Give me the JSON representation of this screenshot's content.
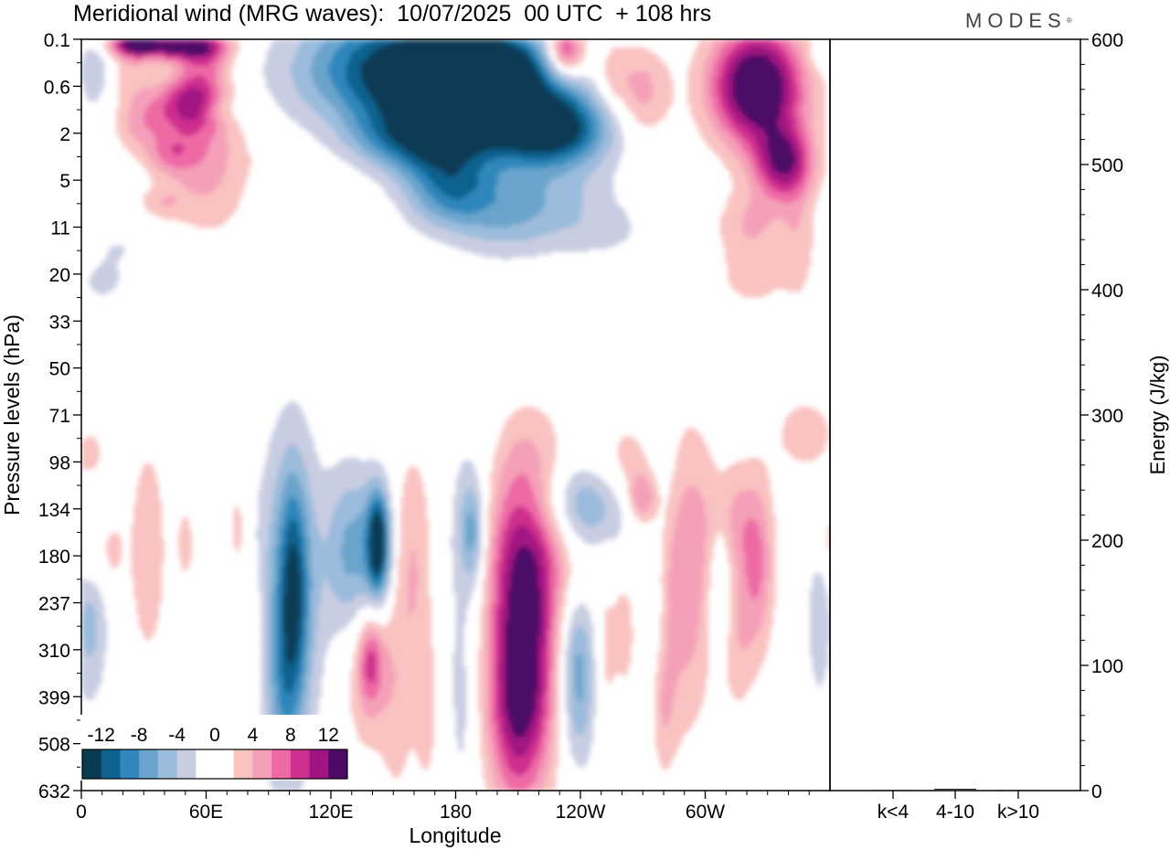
{
  "header": {
    "title": "Meridional wind (MRG waves):  10/07/2025  00 UTC  + 108 hrs",
    "brand": "MODES",
    "brand_mark": "®"
  },
  "colors": {
    "neg_levels": [
      "#0b3a55",
      "#0f628f",
      "#2f87bc",
      "#6aa4cc",
      "#9bbcdc",
      "#c9cde2"
    ],
    "pos_levels": [
      "#f9c3c1",
      "#f5a0b9",
      "#ee6aa5",
      "#cf2f8f",
      "#a11482",
      "#4b0a66"
    ],
    "zero": "#ffffff"
  },
  "chart_data": [
    {
      "type": "heatmap",
      "title": "Meridional wind (MRG waves):  10/07/2025  00 UTC  + 108 hrs",
      "xlabel": "Longitude",
      "ylabel": "Pressure levels (hPa)",
      "x_ticks": [
        "0",
        "60E",
        "120E",
        "180",
        "120W",
        "60W"
      ],
      "x_tick_degrees": [
        0,
        60,
        120,
        180,
        240,
        300
      ],
      "xlim": [
        0,
        360
      ],
      "y_ticks": [
        "0.1",
        "0.6",
        "2",
        "5",
        "11",
        "20",
        "33",
        "50",
        "71",
        "98",
        "134",
        "180",
        "237",
        "310",
        "399",
        "508",
        "632"
      ],
      "y_reversed": true,
      "colorbar": {
        "labels": [
          "-12",
          "-8",
          "-4",
          "0",
          "4",
          "8",
          "12"
        ],
        "levels": [
          -14,
          -12,
          -10,
          -8,
          -6,
          -4,
          -2,
          2,
          4,
          6,
          8,
          10,
          12,
          14
        ]
      },
      "blobs": [
        {
          "x": 42,
          "level": 0.3,
          "w": 16,
          "h": 0.4,
          "v": 12
        },
        {
          "x": 25,
          "level": 0.2,
          "w": 8,
          "h": 0.3,
          "v": 7
        },
        {
          "x": 60,
          "level": 0.5,
          "w": 9,
          "h": 0.8,
          "v": 6
        },
        {
          "x": 6,
          "level": 1.3,
          "w": 5,
          "h": 1.2,
          "v": -4
        },
        {
          "x": 24,
          "level": 1.2,
          "w": 6,
          "h": 1.0,
          "v": 3
        },
        {
          "x": 45,
          "level": 2.9,
          "w": 14,
          "h": 0.9,
          "v": 6
        },
        {
          "x": 57,
          "level": 2.5,
          "w": 10,
          "h": 1.0,
          "v": 7
        },
        {
          "x": 27,
          "level": 3.8,
          "w": 8,
          "h": 0.8,
          "v": 3
        },
        {
          "x": 59,
          "level": 4.8,
          "w": 17,
          "h": 1.1,
          "v": 4
        },
        {
          "x": 43,
          "level": 4.9,
          "w": 8,
          "h": 0.6,
          "v": 4
        },
        {
          "x": 60,
          "level": 6.9,
          "w": 14,
          "h": 1.3,
          "v": 3
        },
        {
          "x": 38,
          "level": 7.0,
          "w": 8,
          "h": 0.5,
          "v": 3
        },
        {
          "x": 18,
          "level": 8.9,
          "w": 18,
          "h": 1.0,
          "v": -2
        },
        {
          "x": 10,
          "level": 10.5,
          "w": 8,
          "h": 0.6,
          "v": -2
        },
        {
          "x": 65,
          "level": 3.0,
          "w": 8,
          "h": 0.4,
          "v": -2
        },
        {
          "x": 155,
          "level": 1.3,
          "w": 34,
          "h": 1.8,
          "v": -14
        },
        {
          "x": 190,
          "level": 2.6,
          "w": 22,
          "h": 1.3,
          "v": -14
        },
        {
          "x": 226,
          "level": 3.8,
          "w": 20,
          "h": 1.2,
          "v": -14
        },
        {
          "x": 165,
          "level": 4.4,
          "w": 18,
          "h": 1.0,
          "v": -8
        },
        {
          "x": 178,
          "level": 6.4,
          "w": 16,
          "h": 1.2,
          "v": -9
        },
        {
          "x": 197,
          "level": 1.0,
          "w": 18,
          "h": 1.0,
          "v": -10
        },
        {
          "x": 222,
          "level": 6.9,
          "w": 22,
          "h": 1.2,
          "v": -4
        },
        {
          "x": 205,
          "level": 7.9,
          "w": 16,
          "h": 1.2,
          "v": -3
        },
        {
          "x": 252,
          "level": 8.2,
          "w": 18,
          "h": 1.0,
          "v": -2
        },
        {
          "x": 140,
          "level": 4.1,
          "w": 12,
          "h": 0.8,
          "v": -2
        },
        {
          "x": 233,
          "level": 0.5,
          "w": 6,
          "h": 0.7,
          "v": 10
        },
        {
          "x": 270,
          "level": 2.3,
          "w": 9,
          "h": 1.4,
          "v": 5
        },
        {
          "x": 255,
          "level": 1.6,
          "w": 6,
          "h": 1.0,
          "v": 3
        },
        {
          "x": 325,
          "level": 2.0,
          "w": 16,
          "h": 1.8,
          "v": 16
        },
        {
          "x": 338,
          "level": 5.3,
          "w": 10,
          "h": 1.1,
          "v": 11
        },
        {
          "x": 322,
          "level": 7.8,
          "w": 12,
          "h": 1.0,
          "v": 4
        },
        {
          "x": 323,
          "level": 10.1,
          "w": 12,
          "h": 1.0,
          "v": 3
        },
        {
          "x": 345,
          "level": 8.6,
          "w": 6,
          "h": 1.8,
          "v": 3
        },
        {
          "x": 358,
          "level": 0.6,
          "w": 6,
          "h": 0.5,
          "v": -3
        },
        {
          "x": 262,
          "level": 11.9,
          "w": 20,
          "h": 0.6,
          "v": -2
        },
        {
          "x": 348,
          "level": 16.8,
          "w": 12,
          "h": 1.3,
          "v": 3
        },
        {
          "x": 4,
          "level": 17.8,
          "w": 6,
          "h": 1.0,
          "v": 3
        },
        {
          "x": 10,
          "level": 19.6,
          "w": 5,
          "h": 0.9,
          "v": -2
        },
        {
          "x": 14,
          "level": 21.7,
          "w": 5,
          "h": 1.4,
          "v": 3
        },
        {
          "x": 4,
          "level": 24.6,
          "w": 6,
          "h": 2.6,
          "v": -5
        },
        {
          "x": 4,
          "level": 22.0,
          "w": 4,
          "h": 1.2,
          "v": 3
        },
        {
          "x": 32,
          "level": 21.8,
          "w": 6,
          "h": 3.2,
          "v": 4
        },
        {
          "x": 50,
          "level": 21.5,
          "w": 3,
          "h": 1.2,
          "v": 3
        },
        {
          "x": 75,
          "level": 20.8,
          "w": 3,
          "h": 1.5,
          "v": 3
        },
        {
          "x": 81,
          "level": 25.4,
          "w": 4,
          "h": 2.2,
          "v": 3
        },
        {
          "x": 100,
          "level": 23.7,
          "w": 12,
          "h": 5.0,
          "v": -6
        },
        {
          "x": 102,
          "level": 23.7,
          "w": 5,
          "h": 3.5,
          "v": -8
        },
        {
          "x": 131,
          "level": 22.0,
          "w": 9,
          "h": 2.6,
          "v": -7
        },
        {
          "x": 143,
          "level": 21.5,
          "w": 4,
          "h": 1.6,
          "v": -14
        },
        {
          "x": 96,
          "level": 28.4,
          "w": 5,
          "h": 2.5,
          "v": -3
        },
        {
          "x": 76,
          "level": 27.8,
          "w": 4,
          "h": 1.4,
          "v": -2
        },
        {
          "x": 160,
          "level": 22.2,
          "w": 7,
          "h": 3.5,
          "v": 4
        },
        {
          "x": 138,
          "level": 26.8,
          "w": 10,
          "h": 2.6,
          "v": 4
        },
        {
          "x": 139,
          "level": 26.5,
          "w": 4,
          "h": 1.3,
          "v": 6
        },
        {
          "x": 152,
          "level": 29.2,
          "w": 6,
          "h": 3.5,
          "v": 2
        },
        {
          "x": 186,
          "level": 22.0,
          "w": 10,
          "h": 5.0,
          "v": -3
        },
        {
          "x": 188,
          "level": 21.0,
          "w": 4,
          "h": 1.5,
          "v": -6
        },
        {
          "x": 214,
          "level": 21.0,
          "w": 14,
          "h": 3.0,
          "v": 10
        },
        {
          "x": 212,
          "level": 26.5,
          "w": 13,
          "h": 3.2,
          "v": 10
        },
        {
          "x": 210,
          "level": 29.5,
          "w": 10,
          "h": 3.0,
          "v": 6
        },
        {
          "x": 242,
          "level": 19.8,
          "w": 20,
          "h": 1.3,
          "v": -7
        },
        {
          "x": 238,
          "level": 26.0,
          "w": 7,
          "h": 2.0,
          "v": -6
        },
        {
          "x": 239,
          "level": 28.8,
          "w": 6,
          "h": 2.0,
          "v": -4
        },
        {
          "x": 262,
          "level": 18.5,
          "w": 12,
          "h": 1.5,
          "v": 4
        },
        {
          "x": 270,
          "level": 19.6,
          "w": 5,
          "h": 0.8,
          "v": 6
        },
        {
          "x": 279,
          "level": 17.5,
          "w": 6,
          "h": 2.3,
          "v": -3
        },
        {
          "x": 289,
          "level": 22.8,
          "w": 11,
          "h": 4.5,
          "v": 6
        },
        {
          "x": 274,
          "level": 24.4,
          "w": 6,
          "h": 2.6,
          "v": -3
        },
        {
          "x": 262,
          "level": 25.3,
          "w": 4,
          "h": 1.8,
          "v": 3
        },
        {
          "x": 252,
          "level": 26.1,
          "w": 4,
          "h": 2.4,
          "v": 3
        },
        {
          "x": 307,
          "level": 23.0,
          "w": 4,
          "h": 2.5,
          "v": -4
        },
        {
          "x": 312,
          "level": 20.5,
          "w": 9,
          "h": 1.8,
          "v": 4
        },
        {
          "x": 325,
          "level": 22.5,
          "w": 6,
          "h": 2.6,
          "v": 6
        },
        {
          "x": 315,
          "level": 26.0,
          "w": 6,
          "h": 2.0,
          "v": 3
        },
        {
          "x": 360,
          "level": 21.4,
          "w": 4,
          "h": 1.2,
          "v": 3
        },
        {
          "x": 355,
          "level": 24.8,
          "w": 4,
          "h": 2.3,
          "v": -4
        },
        {
          "x": 166,
          "level": 28.6,
          "w": 4,
          "h": 2.5,
          "v": 3
        },
        {
          "x": 183,
          "level": 29.0,
          "w": 4,
          "h": 3.0,
          "v": -2
        },
        {
          "x": 280,
          "level": 28.4,
          "w": 4,
          "h": 2.0,
          "v": 3
        }
      ]
    },
    {
      "type": "bar",
      "categories": [
        "k<4",
        "4-10",
        "k>10"
      ],
      "values": [
        0.5,
        1.5,
        0.3
      ],
      "ylabel": "Energy (J/kg)",
      "ylim": [
        0,
        600
      ],
      "y_ticks": [
        "0",
        "100",
        "200",
        "300",
        "400",
        "500",
        "600"
      ]
    }
  ]
}
